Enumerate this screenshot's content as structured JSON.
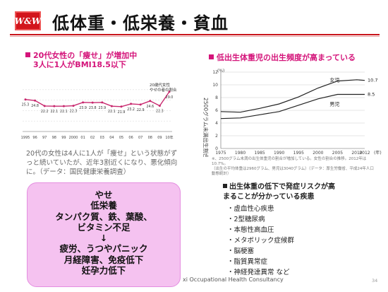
{
  "header": {
    "logo_text": "W&W",
    "title": "低体重・低栄養・貧血"
  },
  "left_chart": {
    "heading_line1": "20代女性の「痩せ」が増加中",
    "heading_line2": "3人に1人がBMI18.5以下",
    "callout_line1": "20歳代女性",
    "callout_line2": "やせの者の割合",
    "description": "20代の女性は4人に1人が「痩せ」という状態がずっと続いていたが、近年3割近くになり、悪化傾向に。（データ：国民健康栄養調査）"
  },
  "right_chart": {
    "heading": "低出生体重児の出生頻度が高まっている",
    "yaxis_label": "2500グラム未満出生割合",
    "unit_label": "(%)",
    "year_label": "(年)",
    "note_line1": "※、2500グラム未満の出生体重児の割合が増加している。女性の割合の推移。2012年は10.7%。",
    "note_line2": "（出生の平均体重は2960グラム、男児は3040グラム）（データ：厚生労働省、平成24年人口動態統計）"
  },
  "pink_box": {
    "lines": [
      "やせ",
      "低栄養",
      "タンパク質、鉄、葉酸、",
      "ビタミン不足",
      "↓",
      "疲労、うつやパニック",
      "月経障害、免疫低下",
      "妊孕力低下"
    ]
  },
  "risk": {
    "heading_line1": "出生体重の低下で発症リスクが高",
    "heading_line2": "まることが分かっている疾患",
    "items": [
      "・虚血性心疾患",
      "・2型糖尿病",
      "・本態性高血圧",
      "・メタボリック症候群",
      "・脳梗塞",
      "・脂質異常症",
      "・神経発達異常 など"
    ]
  },
  "footer": {
    "text": "xi Occupational Health Consultancy",
    "page": "34"
  },
  "colors": {
    "brand_red": "#c9151c",
    "accent_magenta": "#d4147a",
    "line_pink": "#c8286e",
    "box_pink": "#f5c2f0"
  },
  "chart_data": [
    {
      "type": "line",
      "title": "20代女性の「痩せ」が増加中",
      "x": [
        "1995",
        "96",
        "97",
        "98",
        "99",
        "2000",
        "01",
        "02",
        "03",
        "04",
        "05",
        "06",
        "07",
        "08",
        "09",
        "10年"
      ],
      "series": [
        {
          "name": "20歳代女性 やせの者の割合",
          "values": [
            25.3,
            24.8,
            22.2,
            22.1,
            22.1,
            22.3,
            23.9,
            23.8,
            23.9,
            22.1,
            21.9,
            23.2,
            22.9,
            24.6,
            22.3,
            29.0
          ]
        }
      ],
      "data_labels": [
        "25.3",
        "24.8",
        "22.2",
        "22.1",
        "22.1",
        "22.3",
        "23.9",
        "23.8",
        "23.9",
        "22.1",
        "21.9",
        "23.2",
        "22.9",
        "24.6",
        "22.3",
        "29.0"
      ],
      "ylim": [
        10,
        35
      ],
      "grid": true
    },
    {
      "type": "line",
      "title": "低出生体重児の出生頻度が高まっている",
      "xlabel": "(年)",
      "ylabel": "2500グラム未満出生割合",
      "x_ticks": [
        "1975",
        "1980",
        "1985",
        "1990",
        "1995",
        "2000",
        "2005",
        "2010",
        "2012"
      ],
      "y_ticks": [
        "0",
        "2",
        "4",
        "6",
        "8",
        "10",
        "12"
      ],
      "ylim": [
        0,
        12
      ],
      "series": [
        {
          "name": "女児",
          "x": [
            1975,
            1980,
            1985,
            1990,
            1995,
            2000,
            2005,
            2010,
            2012
          ],
          "values": [
            5.8,
            5.7,
            6.3,
            7.0,
            8.1,
            9.5,
            10.6,
            10.8,
            10.7
          ]
        },
        {
          "name": "男児",
          "x": [
            1975,
            1980,
            1985,
            1990,
            1995,
            2000,
            2005,
            2010,
            2012
          ],
          "values": [
            4.7,
            4.8,
            5.3,
            5.8,
            6.8,
            7.8,
            8.5,
            8.5,
            8.5
          ]
        }
      ],
      "end_labels": [
        "10.7",
        "8.5"
      ],
      "grid": true
    }
  ]
}
